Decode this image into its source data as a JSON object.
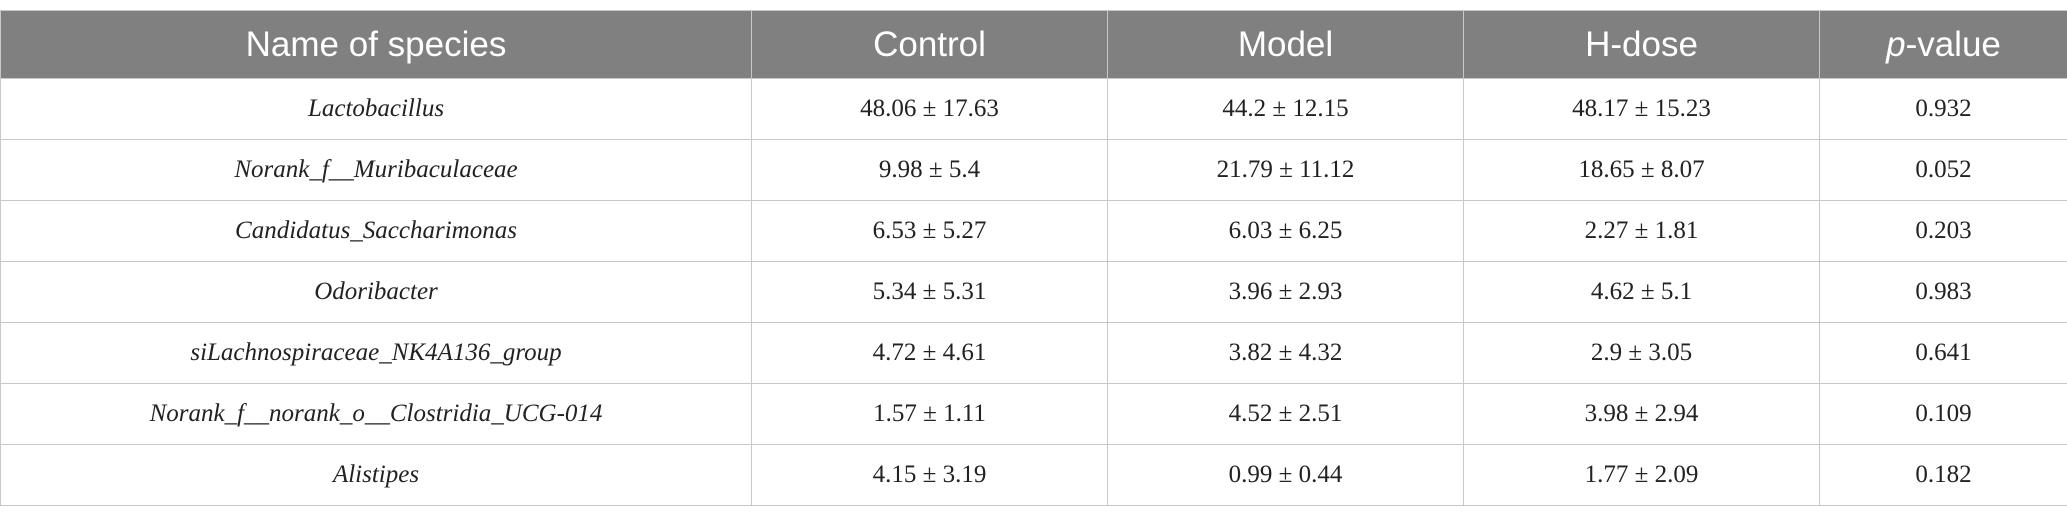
{
  "table": {
    "header": [
      "Name of species",
      "Control",
      "Model",
      "H-dose",
      "p-value"
    ],
    "rows": [
      [
        "Lactobacillus",
        "48.06 ± 17.63",
        "44.2 ± 12.15",
        "48.17 ± 15.23",
        "0.932"
      ],
      [
        "Norank_f__Muribaculaceae",
        "9.98 ± 5.4",
        "21.79 ± 11.12",
        "18.65 ± 8.07",
        "0.052"
      ],
      [
        "Candidatus_Saccharimonas",
        "6.53 ± 5.27",
        "6.03 ± 6.25",
        "2.27 ± 1.81",
        "0.203"
      ],
      [
        "Odoribacter",
        "5.34 ± 5.31",
        "3.96 ± 2.93",
        "4.62 ± 5.1",
        "0.983"
      ],
      [
        "siLachnospiraceae_NK4A136_group",
        "4.72 ± 4.61",
        "3.82 ± 4.32",
        "2.9 ± 3.05",
        "0.641"
      ],
      [
        "Norank_f__norank_o__Clostridia_UCG-014",
        "1.57 ± 1.11",
        "4.52 ± 2.51",
        "3.98 ± 2.94",
        "0.109"
      ],
      [
        "Alistipes",
        "4.15 ± 3.19",
        "0.99 ± 0.44",
        "1.77 ± 2.09",
        "0.182"
      ]
    ]
  }
}
